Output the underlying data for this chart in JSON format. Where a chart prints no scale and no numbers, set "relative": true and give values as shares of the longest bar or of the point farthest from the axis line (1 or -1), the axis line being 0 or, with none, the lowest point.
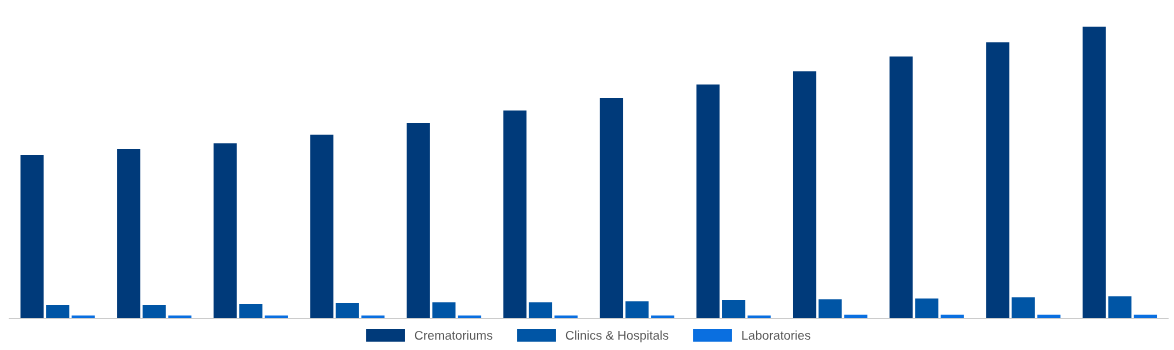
{
  "chart_data": {
    "type": "bar",
    "relative": true,
    "categories": [
      null,
      null,
      null,
      null,
      null,
      null,
      null,
      null,
      null,
      null,
      null,
      null
    ],
    "series": [
      {
        "name": "Crematoriums",
        "color": "#003a7a",
        "values": [
          0.561,
          0.581,
          0.601,
          0.63,
          0.67,
          0.713,
          0.756,
          0.802,
          0.848,
          0.898,
          0.947,
          1
        ]
      },
      {
        "name": "Clinics & Hospitals",
        "color": "#0055a5",
        "values": [
          0.046,
          0.046,
          0.05,
          0.053,
          0.056,
          0.056,
          0.059,
          0.063,
          0.066,
          0.069,
          0.073,
          0.076
        ]
      },
      {
        "name": "Laboratories",
        "color": "#0a6fe0",
        "values": [
          0.01,
          0.01,
          0.01,
          0.01,
          0.01,
          0.01,
          0.01,
          0.01,
          0.013,
          0.013,
          0.013,
          0.013
        ]
      }
    ],
    "legend": "bottom",
    "grid": false
  }
}
